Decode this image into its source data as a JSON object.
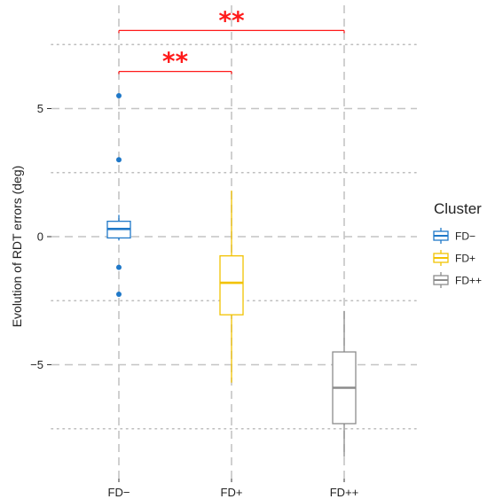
{
  "chart_data": {
    "type": "box",
    "ylabel": "Evolution of RDT errors (deg)",
    "ylim": [
      -9.5,
      9.2
    ],
    "yticks": [
      -5,
      0,
      5
    ],
    "ytick_labels": [
      "-5",
      "0",
      "5"
    ],
    "minor_y": [
      -7.5,
      -2.5,
      2.5,
      7.5
    ],
    "categories": [
      "FD−",
      "FD+",
      "FD++"
    ],
    "grid": "dashed major, dotted minor",
    "series": [
      {
        "name": "FD−",
        "color": "#1f78c8",
        "whisker_low": -0.15,
        "q1": -0.05,
        "median": 0.3,
        "q3": 0.6,
        "whisker_high": 0.85,
        "outliers": [
          5.5,
          3.0,
          -1.2,
          -2.25
        ]
      },
      {
        "name": "FD+",
        "color": "#f2c200",
        "whisker_low": -5.7,
        "q1": -3.05,
        "median": -1.8,
        "q3": -0.75,
        "whisker_high": 1.8,
        "outliers": []
      },
      {
        "name": "FD++",
        "color": "#8c8c8c",
        "whisker_low": -8.6,
        "q1": -7.3,
        "median": -5.9,
        "q3": -4.5,
        "whisker_high": -2.9,
        "outliers": []
      }
    ],
    "significance": [
      {
        "from": 0,
        "to": 1,
        "y": 6.45,
        "label": "**"
      },
      {
        "from": 0,
        "to": 2,
        "y": 8.05,
        "label": "**"
      }
    ],
    "legend": {
      "title": "Cluster",
      "position": "right"
    }
  }
}
